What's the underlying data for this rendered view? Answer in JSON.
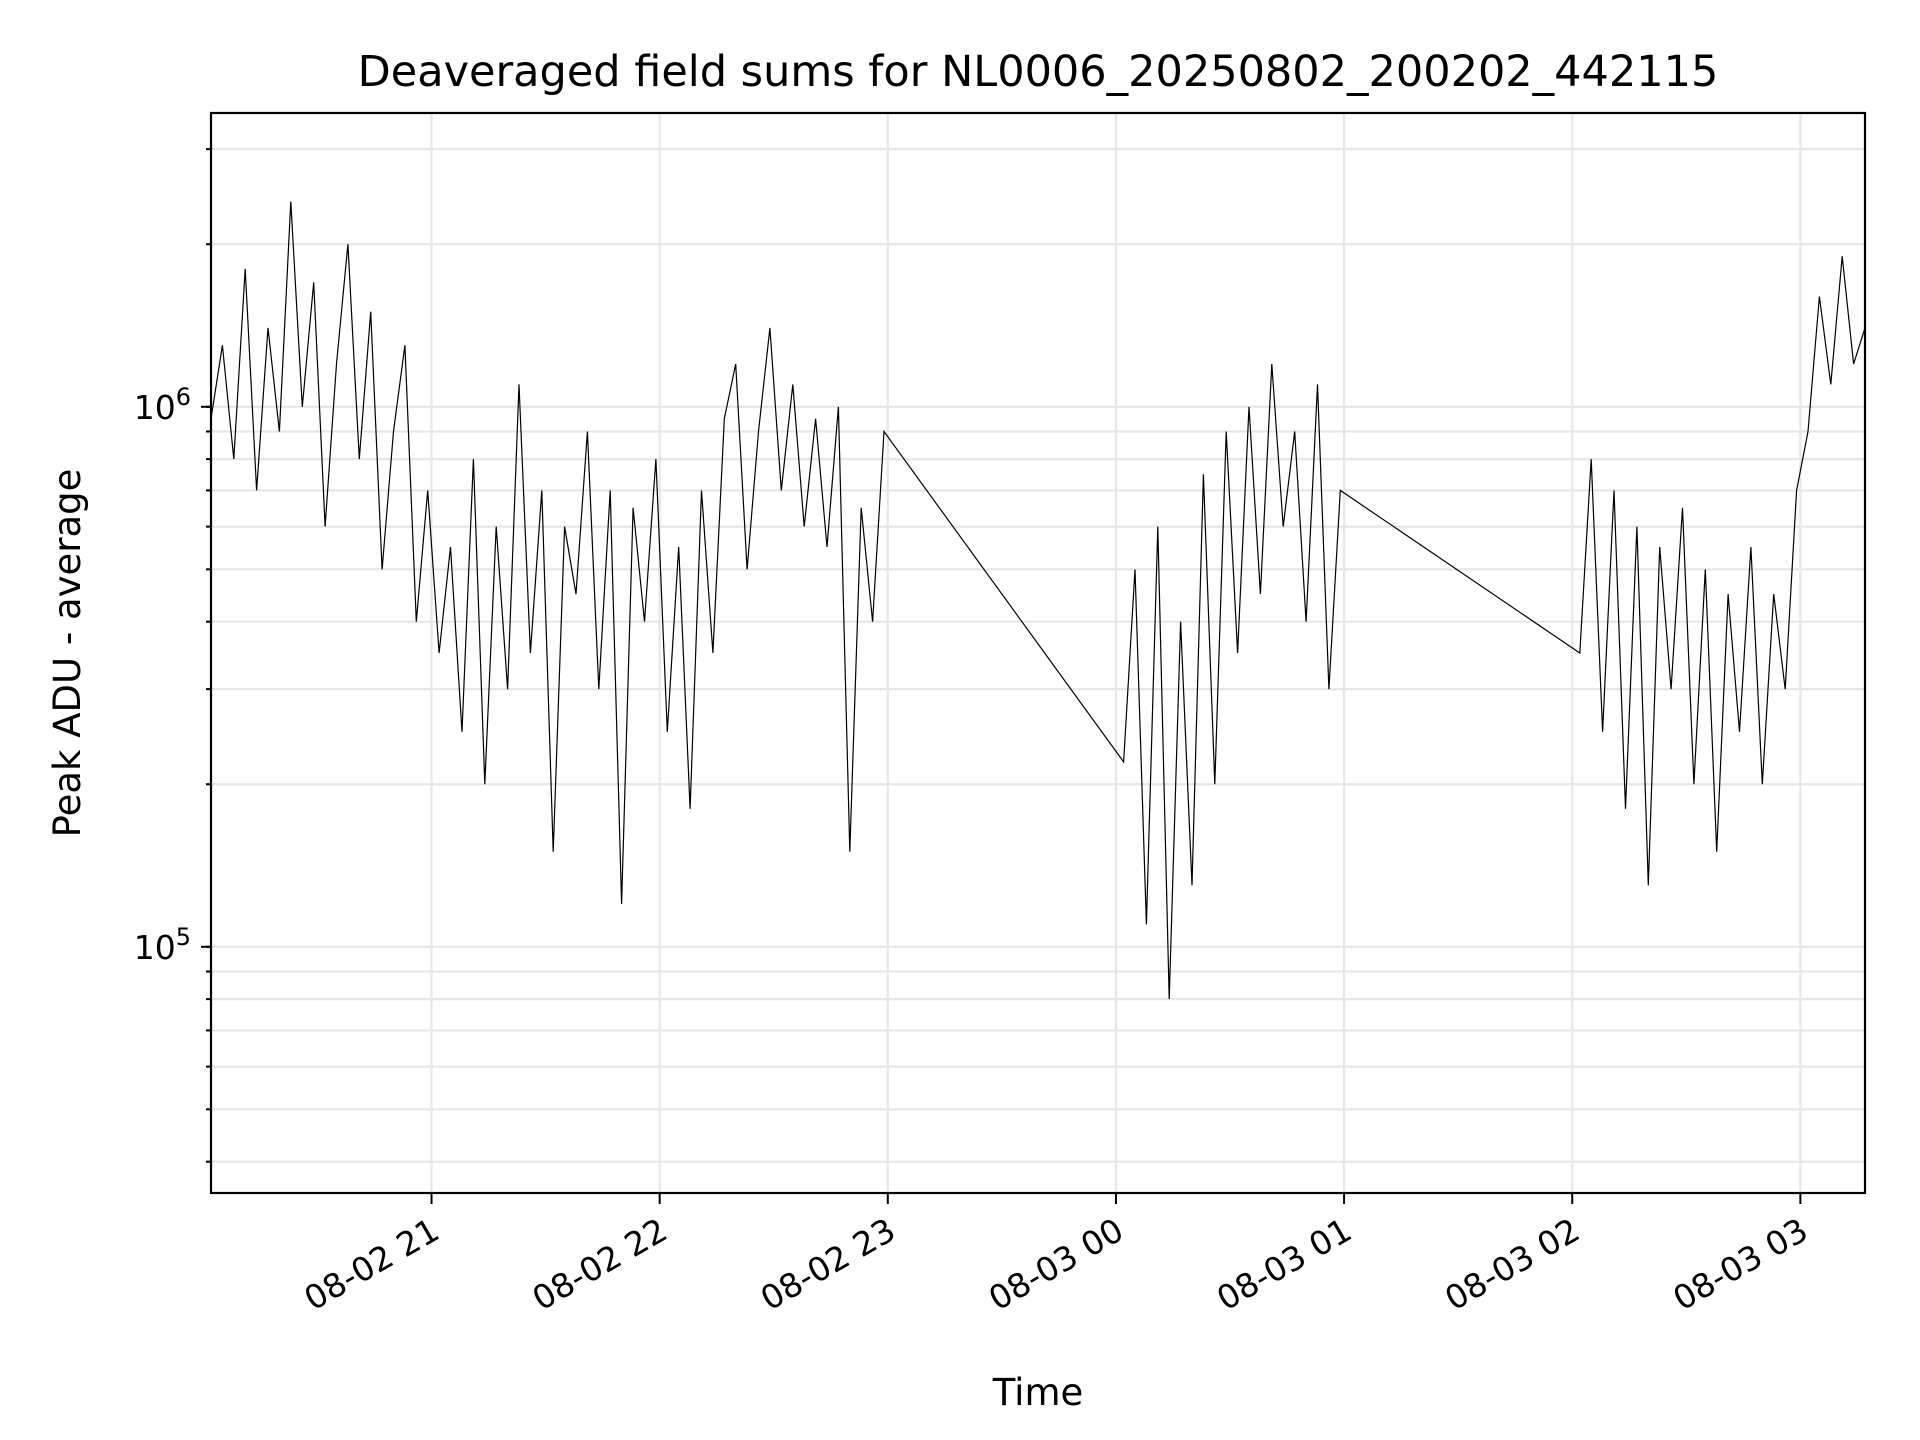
{
  "chart_data": {
    "type": "line",
    "title": "Deaveraged field sums for NL0006_20250802_200202_442115",
    "xlabel": "Time",
    "ylabel": "Peak ADU - average",
    "yscale": "log",
    "ylim": [
      35000,
      3500000
    ],
    "xlim": [
      "2025-08-02 20:02",
      "2025-08-03 03:17"
    ],
    "grid": true,
    "line_color": "#000000",
    "x_ticks": [
      {
        "t": "2025-08-02 21:00",
        "label": "08-02 21"
      },
      {
        "t": "2025-08-02 22:00",
        "label": "08-02 22"
      },
      {
        "t": "2025-08-02 23:00",
        "label": "08-02 23"
      },
      {
        "t": "2025-08-03 00:00",
        "label": "08-03 00"
      },
      {
        "t": "2025-08-03 01:00",
        "label": "08-03 01"
      },
      {
        "t": "2025-08-03 02:00",
        "label": "08-03 02"
      },
      {
        "t": "2025-08-03 03:00",
        "label": "08-03 03"
      }
    ],
    "y_ticks": [
      {
        "value": 100000,
        "base": "10",
        "exp": "5"
      },
      {
        "value": 1000000,
        "base": "10",
        "exp": "6"
      }
    ],
    "series": [
      {
        "points": [
          [
            "2025-08-02 20:02",
            950000
          ],
          [
            "2025-08-02 20:05",
            1300000
          ],
          [
            "2025-08-02 20:08",
            800000
          ],
          [
            "2025-08-02 20:11",
            1800000
          ],
          [
            "2025-08-02 20:14",
            700000
          ],
          [
            "2025-08-02 20:17",
            1400000
          ],
          [
            "2025-08-02 20:20",
            900000
          ],
          [
            "2025-08-02 20:23",
            2400000
          ],
          [
            "2025-08-02 20:26",
            1000000
          ],
          [
            "2025-08-02 20:29",
            1700000
          ],
          [
            "2025-08-02 20:32",
            600000
          ],
          [
            "2025-08-02 20:35",
            1200000
          ],
          [
            "2025-08-02 20:38",
            2000000
          ],
          [
            "2025-08-02 20:41",
            800000
          ],
          [
            "2025-08-02 20:44",
            1500000
          ],
          [
            "2025-08-02 20:47",
            500000
          ],
          [
            "2025-08-02 20:50",
            900000
          ],
          [
            "2025-08-02 20:53",
            1300000
          ],
          [
            "2025-08-02 20:56",
            400000
          ],
          [
            "2025-08-02 20:59",
            700000
          ],
          [
            "2025-08-02 21:02",
            350000
          ],
          [
            "2025-08-02 21:05",
            550000
          ],
          [
            "2025-08-02 21:08",
            250000
          ],
          [
            "2025-08-02 21:11",
            800000
          ],
          [
            "2025-08-02 21:14",
            200000
          ],
          [
            "2025-08-02 21:17",
            600000
          ],
          [
            "2025-08-02 21:20",
            300000
          ],
          [
            "2025-08-02 21:23",
            1100000
          ],
          [
            "2025-08-02 21:26",
            350000
          ],
          [
            "2025-08-02 21:29",
            700000
          ],
          [
            "2025-08-02 21:32",
            150000
          ],
          [
            "2025-08-02 21:35",
            600000
          ],
          [
            "2025-08-02 21:38",
            450000
          ],
          [
            "2025-08-02 21:41",
            900000
          ],
          [
            "2025-08-02 21:44",
            300000
          ],
          [
            "2025-08-02 21:47",
            700000
          ],
          [
            "2025-08-02 21:50",
            120000
          ],
          [
            "2025-08-02 21:53",
            650000
          ],
          [
            "2025-08-02 21:56",
            400000
          ],
          [
            "2025-08-02 21:59",
            800000
          ],
          [
            "2025-08-02 22:02",
            250000
          ],
          [
            "2025-08-02 22:05",
            550000
          ],
          [
            "2025-08-02 22:08",
            180000
          ],
          [
            "2025-08-02 22:11",
            700000
          ],
          [
            "2025-08-02 22:14",
            350000
          ],
          [
            "2025-08-02 22:17",
            950000
          ],
          [
            "2025-08-02 22:20",
            1200000
          ],
          [
            "2025-08-02 22:23",
            500000
          ],
          [
            "2025-08-02 22:26",
            900000
          ],
          [
            "2025-08-02 22:29",
            1400000
          ],
          [
            "2025-08-02 22:32",
            700000
          ],
          [
            "2025-08-02 22:35",
            1100000
          ],
          [
            "2025-08-02 22:38",
            600000
          ],
          [
            "2025-08-02 22:41",
            950000
          ],
          [
            "2025-08-02 22:44",
            550000
          ],
          [
            "2025-08-02 22:47",
            1000000
          ],
          [
            "2025-08-02 22:50",
            150000
          ],
          [
            "2025-08-02 22:53",
            650000
          ],
          [
            "2025-08-02 22:56",
            400000
          ],
          [
            "2025-08-02 22:59",
            900000
          ],
          [
            "2025-08-03 00:02",
            220000
          ],
          [
            "2025-08-03 00:05",
            500000
          ],
          [
            "2025-08-03 00:08",
            110000
          ],
          [
            "2025-08-03 00:11",
            600000
          ],
          [
            "2025-08-03 00:14",
            80000
          ],
          [
            "2025-08-03 00:17",
            400000
          ],
          [
            "2025-08-03 00:20",
            130000
          ],
          [
            "2025-08-03 00:23",
            750000
          ],
          [
            "2025-08-03 00:26",
            200000
          ],
          [
            "2025-08-03 00:29",
            900000
          ],
          [
            "2025-08-03 00:32",
            350000
          ],
          [
            "2025-08-03 00:35",
            1000000
          ],
          [
            "2025-08-03 00:38",
            450000
          ],
          [
            "2025-08-03 00:41",
            1200000
          ],
          [
            "2025-08-03 00:44",
            600000
          ],
          [
            "2025-08-03 00:47",
            900000
          ],
          [
            "2025-08-03 00:50",
            400000
          ],
          [
            "2025-08-03 00:53",
            1100000
          ],
          [
            "2025-08-03 00:56",
            300000
          ],
          [
            "2025-08-03 00:59",
            700000
          ],
          [
            "2025-08-03 02:02",
            350000
          ],
          [
            "2025-08-03 02:05",
            800000
          ],
          [
            "2025-08-03 02:08",
            250000
          ],
          [
            "2025-08-03 02:11",
            700000
          ],
          [
            "2025-08-03 02:14",
            180000
          ],
          [
            "2025-08-03 02:17",
            600000
          ],
          [
            "2025-08-03 02:20",
            130000
          ],
          [
            "2025-08-03 02:23",
            550000
          ],
          [
            "2025-08-03 02:26",
            300000
          ],
          [
            "2025-08-03 02:29",
            650000
          ],
          [
            "2025-08-03 02:32",
            200000
          ],
          [
            "2025-08-03 02:35",
            500000
          ],
          [
            "2025-08-03 02:38",
            150000
          ],
          [
            "2025-08-03 02:41",
            450000
          ],
          [
            "2025-08-03 02:44",
            250000
          ],
          [
            "2025-08-03 02:47",
            550000
          ],
          [
            "2025-08-03 02:50",
            200000
          ],
          [
            "2025-08-03 02:53",
            450000
          ],
          [
            "2025-08-03 02:56",
            300000
          ],
          [
            "2025-08-03 02:59",
            700000
          ],
          [
            "2025-08-03 03:02",
            900000
          ],
          [
            "2025-08-03 03:05",
            1600000
          ],
          [
            "2025-08-03 03:08",
            1100000
          ],
          [
            "2025-08-03 03:11",
            1900000
          ],
          [
            "2025-08-03 03:14",
            1200000
          ],
          [
            "2025-08-03 03:17",
            1400000
          ]
        ]
      }
    ]
  }
}
